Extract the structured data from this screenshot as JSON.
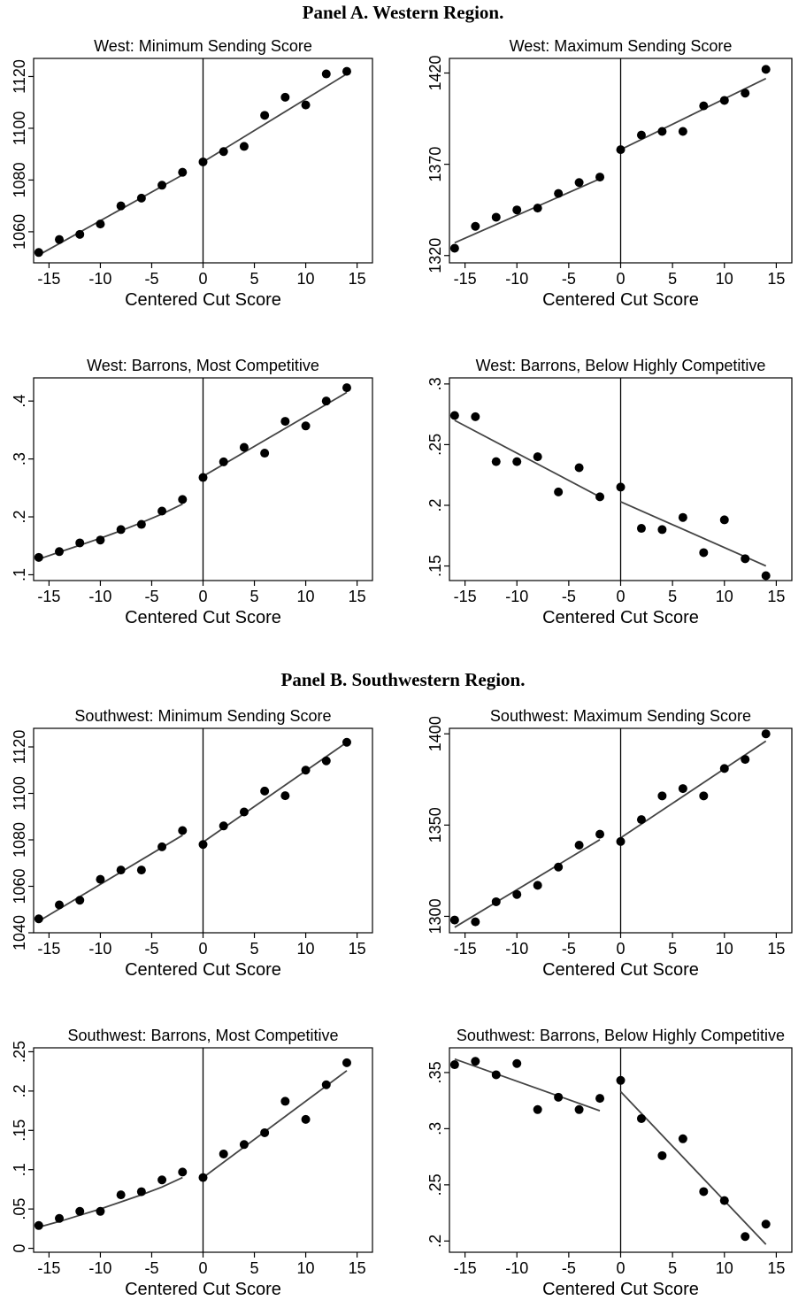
{
  "panels": [
    {
      "title": "Panel A. Western Region."
    },
    {
      "title": "Panel B. Southwestern Region."
    }
  ],
  "chart_data": [
    {
      "type": "scatter",
      "title": "West: Minimum Sending Score",
      "xlabel": "Centered Cut Score",
      "ylabel": "",
      "xlim": [
        -16.5,
        16.5
      ],
      "ylim": [
        1048,
        1127
      ],
      "xticks": [
        -15,
        -10,
        -5,
        0,
        5,
        10,
        15
      ],
      "xtick_labels": [
        "-15",
        "-10",
        "-5",
        "0",
        "5",
        "10",
        "15"
      ],
      "yticks": [
        1060,
        1080,
        1100,
        1120
      ],
      "ytick_labels": [
        "1060",
        "1080",
        "1100",
        "1120"
      ],
      "cutoff_line": 0,
      "x": [
        -16,
        -14,
        -12,
        -10,
        -8,
        -6,
        -4,
        -2,
        0,
        2,
        4,
        6,
        8,
        10,
        12,
        14
      ],
      "y": [
        1052,
        1057,
        1059,
        1063,
        1070,
        1073,
        1078,
        1083,
        1087,
        1091,
        1093,
        1105,
        1112,
        1109,
        1121,
        1122
      ],
      "fits": [
        {
          "x": [
            -16,
            -2
          ],
          "y": [
            1051,
            1082
          ]
        },
        {
          "x": [
            0,
            14
          ],
          "y": [
            1087,
            1121
          ]
        }
      ]
    },
    {
      "type": "scatter",
      "title": "West: Maximum Sending Score",
      "xlabel": "Centered Cut Score",
      "ylabel": "",
      "xlim": [
        -16.5,
        16.5
      ],
      "ylim": [
        1316,
        1428
      ],
      "xticks": [
        -15,
        -10,
        -5,
        0,
        5,
        10,
        15
      ],
      "xtick_labels": [
        "-15",
        "-10",
        "-5",
        "0",
        "5",
        "10",
        "15"
      ],
      "yticks": [
        1320,
        1370,
        1420
      ],
      "ytick_labels": [
        "1320",
        "1370",
        "1420"
      ],
      "cutoff_line": 0,
      "x": [
        -16,
        -14,
        -12,
        -10,
        -8,
        -6,
        -4,
        -2,
        0,
        2,
        4,
        6,
        8,
        10,
        12,
        14
      ],
      "y": [
        1324,
        1336,
        1341,
        1345,
        1346,
        1354,
        1360,
        1363,
        1378,
        1386,
        1388,
        1388,
        1402,
        1405,
        1409,
        1422
      ],
      "fits": [
        {
          "x": [
            -16,
            -2
          ],
          "y": [
            1327,
            1362
          ]
        },
        {
          "x": [
            0,
            14
          ],
          "y": [
            1378,
            1417
          ]
        }
      ]
    },
    {
      "type": "scatter",
      "title": "West: Barrons, Most Competitive",
      "xlabel": "Centered Cut Score",
      "ylabel": "",
      "xlim": [
        -16.5,
        16.5
      ],
      "ylim": [
        0.09,
        0.44
      ],
      "xticks": [
        -15,
        -10,
        -5,
        0,
        5,
        10,
        15
      ],
      "xtick_labels": [
        "-15",
        "-10",
        "-5",
        "0",
        "5",
        "10",
        "15"
      ],
      "yticks": [
        0.1,
        0.2,
        0.3,
        0.4
      ],
      "ytick_labels": [
        ".1",
        ".2",
        ".3",
        ".4"
      ],
      "cutoff_line": 0,
      "x": [
        -16,
        -14,
        -12,
        -10,
        -8,
        -6,
        -4,
        -2,
        0,
        2,
        4,
        6,
        8,
        10,
        12,
        14
      ],
      "y": [
        0.13,
        0.14,
        0.155,
        0.16,
        0.178,
        0.187,
        0.21,
        0.23,
        0.268,
        0.295,
        0.32,
        0.31,
        0.365,
        0.357,
        0.4,
        0.423
      ],
      "fits": [
        {
          "x": [
            -16,
            -14,
            -12,
            -10,
            -8,
            -6,
            -4,
            -2
          ],
          "y": [
            0.127,
            0.139,
            0.151,
            0.163,
            0.176,
            0.19,
            0.205,
            0.222
          ]
        },
        {
          "x": [
            0,
            14
          ],
          "y": [
            0.27,
            0.415
          ]
        }
      ]
    },
    {
      "type": "scatter",
      "title": "West: Barrons, Below Highly Competitive",
      "xlabel": "Centered Cut Score",
      "ylabel": "",
      "xlim": [
        -16.5,
        16.5
      ],
      "ylim": [
        0.138,
        0.305
      ],
      "xticks": [
        -15,
        -10,
        -5,
        0,
        5,
        10,
        15
      ],
      "xtick_labels": [
        "-15",
        "-10",
        "-5",
        "0",
        "5",
        "10",
        "15"
      ],
      "yticks": [
        0.15,
        0.2,
        0.25,
        0.3
      ],
      "ytick_labels": [
        ".15",
        ".2",
        ".25",
        ".3"
      ],
      "cutoff_line": 0,
      "x": [
        -16,
        -14,
        -12,
        -10,
        -8,
        -6,
        -4,
        -2,
        0,
        2,
        4,
        6,
        8,
        10,
        12,
        14
      ],
      "y": [
        0.274,
        0.273,
        0.236,
        0.236,
        0.24,
        0.211,
        0.231,
        0.207,
        0.215,
        0.181,
        0.18,
        0.19,
        0.161,
        0.188,
        0.156,
        0.142
      ],
      "fits": [
        {
          "x": [
            -16,
            -2
          ],
          "y": [
            0.27,
            0.207
          ]
        },
        {
          "x": [
            0,
            14
          ],
          "y": [
            0.203,
            0.15
          ]
        }
      ]
    },
    {
      "type": "scatter",
      "title": "Southwest: Minimum Sending Score",
      "xlabel": "Centered Cut Score",
      "ylabel": "",
      "xlim": [
        -16.5,
        16.5
      ],
      "ylim": [
        1040,
        1128
      ],
      "xticks": [
        -15,
        -10,
        -5,
        0,
        5,
        10,
        15
      ],
      "xtick_labels": [
        "-15",
        "-10",
        "-5",
        "0",
        "5",
        "10",
        "15"
      ],
      "yticks": [
        1040,
        1060,
        1080,
        1100,
        1120
      ],
      "ytick_labels": [
        "1040",
        "1060",
        "1080",
        "1100",
        "1120"
      ],
      "cutoff_line": 0,
      "x": [
        -16,
        -14,
        -12,
        -10,
        -8,
        -6,
        -4,
        -2,
        0,
        2,
        4,
        6,
        8,
        10,
        12,
        14
      ],
      "y": [
        1046,
        1052,
        1054,
        1063,
        1067,
        1067,
        1077,
        1084,
        1078,
        1086,
        1092,
        1101,
        1099,
        1110,
        1114,
        1122
      ],
      "fits": [
        {
          "x": [
            -16,
            -2
          ],
          "y": [
            1045,
            1082
          ]
        },
        {
          "x": [
            0,
            14
          ],
          "y": [
            1079,
            1122
          ]
        }
      ]
    },
    {
      "type": "scatter",
      "title": "Southwest: Maximum Sending Score",
      "xlabel": "Centered Cut Score",
      "ylabel": "",
      "xlim": [
        -16.5,
        16.5
      ],
      "ylim": [
        1291,
        1403
      ],
      "xticks": [
        -15,
        -10,
        -5,
        0,
        5,
        10,
        15
      ],
      "xtick_labels": [
        "-15",
        "-10",
        "-5",
        "0",
        "5",
        "10",
        "15"
      ],
      "yticks": [
        1300,
        1350,
        1400
      ],
      "ytick_labels": [
        "1300",
        "1350",
        "1400"
      ],
      "cutoff_line": 0,
      "x": [
        -16,
        -14,
        -12,
        -10,
        -8,
        -6,
        -4,
        -2,
        0,
        2,
        4,
        6,
        8,
        10,
        12,
        14
      ],
      "y": [
        1298,
        1297,
        1308,
        1312,
        1317,
        1327,
        1339,
        1345,
        1341,
        1353,
        1366,
        1370,
        1366,
        1381,
        1386,
        1400
      ],
      "fits": [
        {
          "x": [
            -16,
            -2
          ],
          "y": [
            1294,
            1342
          ]
        },
        {
          "x": [
            0,
            14
          ],
          "y": [
            1343,
            1396
          ]
        }
      ]
    },
    {
      "type": "scatter",
      "title": "Southwest: Barrons, Most Competitive",
      "xlabel": "Centered Cut Score",
      "ylabel": "",
      "xlim": [
        -16.5,
        16.5
      ],
      "ylim": [
        -0.005,
        0.255
      ],
      "xticks": [
        -15,
        -10,
        -5,
        0,
        5,
        10,
        15
      ],
      "xtick_labels": [
        "-15",
        "-10",
        "-5",
        "0",
        "5",
        "10",
        "15"
      ],
      "yticks": [
        0,
        0.05,
        0.1,
        0.15,
        0.2,
        0.25
      ],
      "ytick_labels": [
        "0",
        ".05",
        ".1",
        ".15",
        ".2",
        ".25"
      ],
      "cutoff_line": 0,
      "x": [
        -16,
        -14,
        -12,
        -10,
        -8,
        -6,
        -4,
        -2,
        0,
        2,
        4,
        6,
        8,
        10,
        12,
        14
      ],
      "y": [
        0.029,
        0.038,
        0.047,
        0.047,
        0.068,
        0.072,
        0.087,
        0.097,
        0.09,
        0.12,
        0.132,
        0.147,
        0.187,
        0.164,
        0.208,
        0.236
      ],
      "fits": [
        {
          "x": [
            -16,
            -14,
            -12,
            -10,
            -8,
            -6,
            -4,
            -2
          ],
          "y": [
            0.027,
            0.034,
            0.042,
            0.05,
            0.059,
            0.068,
            0.078,
            0.09
          ]
        },
        {
          "x": [
            0,
            14
          ],
          "y": [
            0.09,
            0.226
          ]
        }
      ]
    },
    {
      "type": "scatter",
      "title": "Southwest: Barrons, Below Highly Competitive",
      "xlabel": "Centered Cut Score",
      "ylabel": "",
      "xlim": [
        -16.5,
        16.5
      ],
      "ylim": [
        0.19,
        0.372
      ],
      "xticks": [
        -15,
        -10,
        -5,
        0,
        5,
        10,
        15
      ],
      "xtick_labels": [
        "-15",
        "-10",
        "-5",
        "0",
        "5",
        "10",
        "15"
      ],
      "yticks": [
        0.2,
        0.25,
        0.3,
        0.35
      ],
      "ytick_labels": [
        ".2",
        ".25",
        ".3",
        ".35"
      ],
      "cutoff_line": 0,
      "x": [
        -16,
        -14,
        -12,
        -10,
        -8,
        -6,
        -4,
        -2,
        0,
        2,
        4,
        6,
        8,
        10,
        12,
        14
      ],
      "y": [
        0.357,
        0.36,
        0.348,
        0.358,
        0.317,
        0.328,
        0.317,
        0.327,
        0.343,
        0.309,
        0.276,
        0.291,
        0.244,
        0.236,
        0.204,
        0.215
      ],
      "fits": [
        {
          "x": [
            -16,
            -2
          ],
          "y": [
            0.362,
            0.316
          ]
        },
        {
          "x": [
            0,
            14
          ],
          "y": [
            0.333,
            0.197
          ]
        }
      ]
    }
  ]
}
